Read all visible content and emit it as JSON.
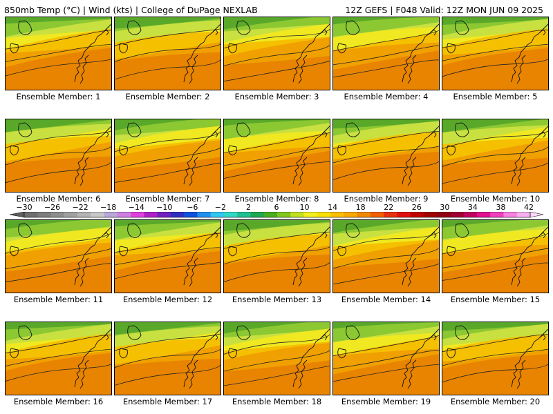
{
  "header": {
    "left": "850mb Temp (°C) | Wind (kts) | College of DuPage NEXLAB",
    "right": "12Z GEFS | F048 Valid: 12Z MON JUN 09 2025"
  },
  "panels": [
    {
      "label": "Ensemble Member: 1"
    },
    {
      "label": "Ensemble Member: 2"
    },
    {
      "label": "Ensemble Member: 3"
    },
    {
      "label": "Ensemble Member: 4"
    },
    {
      "label": "Ensemble Member: 5"
    },
    {
      "label": "Ensemble Member: 6"
    },
    {
      "label": "Ensemble Member: 7"
    },
    {
      "label": "Ensemble Member: 8"
    },
    {
      "label": "Ensemble Member: 9"
    },
    {
      "label": "Ensemble Member: 10"
    },
    {
      "label": "Ensemble Member: 11"
    },
    {
      "label": "Ensemble Member: 12"
    },
    {
      "label": "Ensemble Member: 13"
    },
    {
      "label": "Ensemble Member: 14"
    },
    {
      "label": "Ensemble Member: 15"
    },
    {
      "label": "Ensemble Member: 16"
    },
    {
      "label": "Ensemble Member: 17"
    },
    {
      "label": "Ensemble Member: 18"
    },
    {
      "label": "Ensemble Member: 19"
    },
    {
      "label": "Ensemble Member: 20"
    }
  ],
  "colorbar": {
    "ticks": [
      "−30",
      "−26",
      "−22",
      "−18",
      "−14",
      "−10",
      "−6",
      "−2",
      "2",
      "6",
      "10",
      "14",
      "18",
      "22",
      "26",
      "30",
      "34",
      "38",
      "42"
    ],
    "colors": [
      "#6e6e6e",
      "#7d7d7d",
      "#8e8e8e",
      "#a0a0a0",
      "#b4b4b4",
      "#c8c8c8",
      "#b8a8d8",
      "#d080e0",
      "#e040e0",
      "#b020c8",
      "#7020c0",
      "#3030c0",
      "#1050e0",
      "#2090f0",
      "#30c8f0",
      "#30d8c8",
      "#20c090",
      "#20a850",
      "#48b020",
      "#80c820",
      "#c0e020",
      "#f0f020",
      "#f8e000",
      "#f8c000",
      "#f8a800",
      "#f08800",
      "#f06000",
      "#e83010",
      "#e01010",
      "#c00000",
      "#a00000",
      "#900010",
      "#a00030",
      "#c00060",
      "#e01090",
      "#f040c0",
      "#f880e0",
      "#f8b0f0"
    ]
  },
  "palette": {
    "dark_green": "#5aa82a",
    "green": "#8cc832",
    "light_green": "#c8e040",
    "yellow": "#f0e820",
    "gold": "#f5c000",
    "orange": "#f0a000",
    "dark_orange": "#e88400"
  }
}
